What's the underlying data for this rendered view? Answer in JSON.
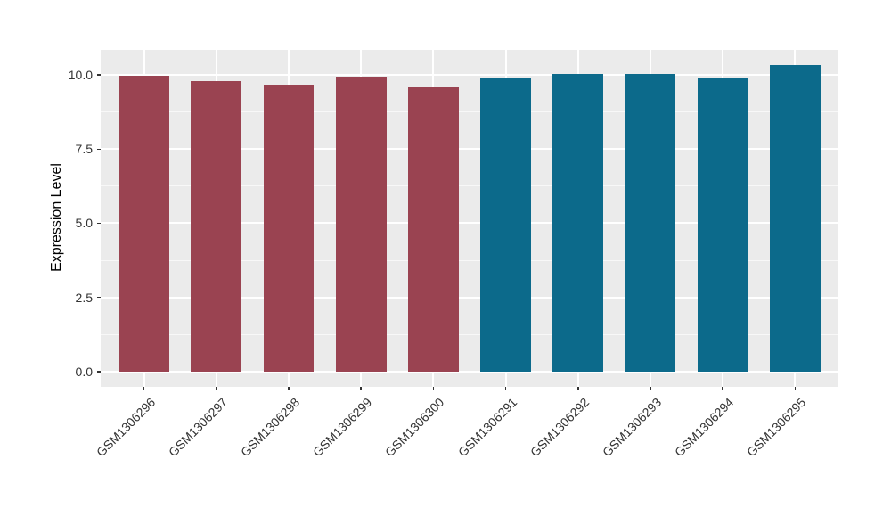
{
  "chart": {
    "figure_bg": "#FFFFFF",
    "panel_bg": "#EBEBEB",
    "grid_color": "#FFFFFF",
    "axis_text_color": "#333333",
    "axis_title_color": "#000000"
  },
  "chart_data": {
    "type": "bar",
    "title": "",
    "xlabel": "",
    "ylabel": "Expression Level",
    "categories": [
      "GSM1306296",
      "GSM1306297",
      "GSM1306298",
      "GSM1306299",
      "GSM1306300",
      "GSM1306291",
      "GSM1306292",
      "GSM1306293",
      "GSM1306294",
      "GSM1306295"
    ],
    "values": [
      9.97,
      9.79,
      9.67,
      9.94,
      9.57,
      9.91,
      10.03,
      10.02,
      9.9,
      10.33
    ],
    "bar_colors": [
      "#9A4351",
      "#9A4351",
      "#9A4351",
      "#9A4351",
      "#9A4351",
      "#0C6A8B",
      "#0C6A8B",
      "#0C6A8B",
      "#0C6A8B",
      "#0C6A8B"
    ],
    "group_colors": {
      "left_group": "#9A4351",
      "right_group": "#0C6A8B"
    },
    "yticks": [
      0,
      2.5,
      5,
      7.5,
      10
    ],
    "ytick_labels": [
      "0.0",
      "2.5",
      "5.0",
      "7.5",
      "10.0"
    ],
    "minor_yticks": [
      1.25,
      3.75,
      6.25,
      8.75
    ],
    "ylim": [
      0,
      10.85
    ],
    "grid": "on",
    "legend": "none",
    "bar_width_frac": 0.7,
    "x_label_angle_deg": 45
  }
}
